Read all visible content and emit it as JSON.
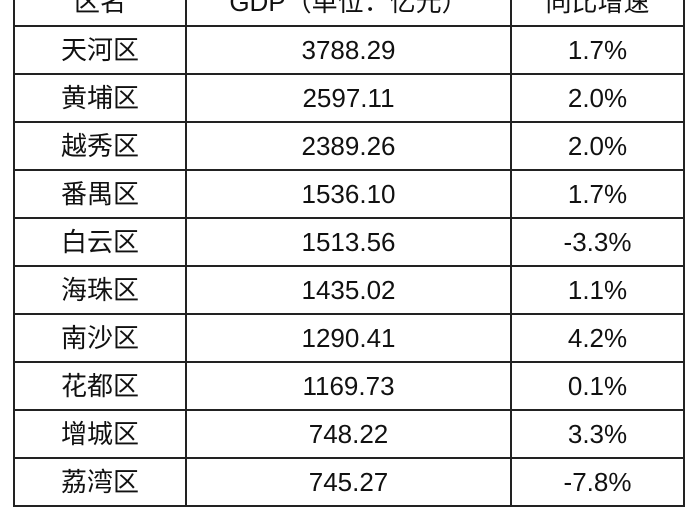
{
  "table": {
    "headers": [
      "区名",
      "GDP（单位：亿元）",
      "同比增速"
    ],
    "rows": [
      [
        "天河区",
        "3788.29",
        "1.7%"
      ],
      [
        "黄埔区",
        "2597.11",
        "2.0%"
      ],
      [
        "越秀区",
        "2389.26",
        "2.0%"
      ],
      [
        "番禺区",
        "1536.10",
        "1.7%"
      ],
      [
        "白云区",
        "1513.56",
        "-3.3%"
      ],
      [
        "海珠区",
        "1435.02",
        "1.1%"
      ],
      [
        "南沙区",
        "1290.41",
        "4.2%"
      ],
      [
        "花都区",
        "1169.73",
        "0.1%"
      ],
      [
        "增城区",
        "748.22",
        "3.3%"
      ],
      [
        "荔湾区",
        "745.27",
        "-7.8%"
      ]
    ]
  }
}
